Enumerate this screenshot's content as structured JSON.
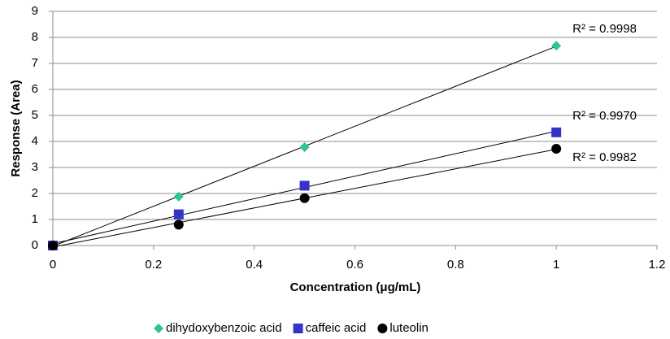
{
  "chart_data": {
    "type": "scatter",
    "x_label": "Concentration (μg/mL)",
    "y_label": "Response (Area)",
    "xlim": [
      0,
      1.2
    ],
    "xticks": [
      0,
      0.2,
      0.4,
      0.6,
      0.8,
      1,
      1.2
    ],
    "ylim": [
      0,
      9
    ],
    "yticks": [
      0,
      1,
      2,
      3,
      4,
      5,
      6,
      7,
      8,
      9
    ],
    "grid": true,
    "trendline": true,
    "legend": "bottom",
    "series": [
      {
        "name": "dihydoxybenzoic acid",
        "color": "#2fc496",
        "marker": "diamond",
        "x": [
          0,
          0.25,
          0.5,
          1
        ],
        "values": [
          0,
          1.88,
          3.78,
          7.68
        ],
        "annotation": "R² = 0.9998"
      },
      {
        "name": "caffeic acid",
        "color": "#3434c8",
        "marker": "square",
        "x": [
          0,
          0.25,
          0.5,
          1
        ],
        "values": [
          0,
          1.2,
          2.3,
          4.35
        ],
        "annotation": "R² = 0.9970"
      },
      {
        "name": "luteolin",
        "color": "#000000",
        "marker": "circle",
        "x": [
          0,
          0.25,
          0.5,
          1
        ],
        "values": [
          0,
          0.8,
          1.82,
          3.72
        ],
        "annotation": "R² = 0.9982"
      }
    ]
  }
}
